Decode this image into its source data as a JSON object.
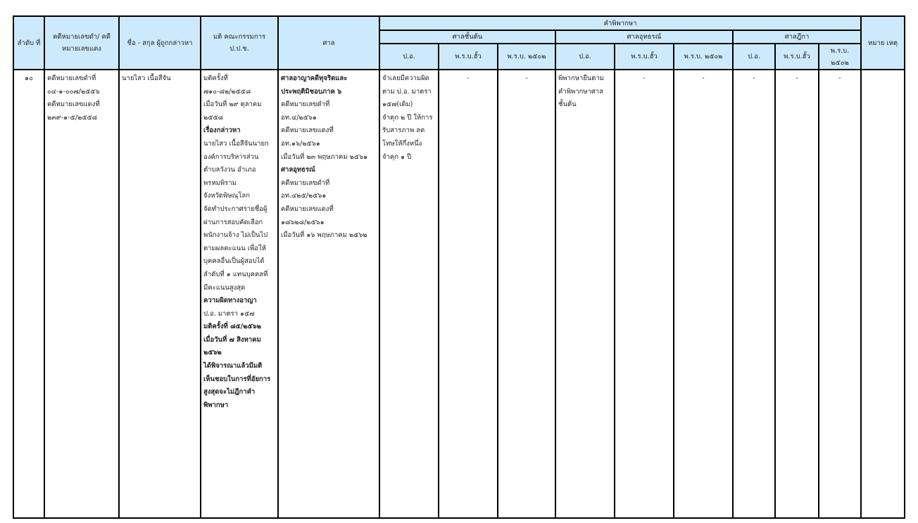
{
  "header": {
    "order": "ลำดับ ที่",
    "case_no": "คดีหมายเลขดำ/ คดีหมายเลขแดง",
    "name": "ชื่อ - สกุล ผู้ถูกกล่าวหา",
    "resolution": "มติ คณะกรรมการ ป.ป.ช.",
    "court": "ศาล",
    "judgment": "คำพิพากษา",
    "first_court": "ศาลชั้นต้น",
    "appeal_court": "ศาลอุทธรณ์",
    "supreme_court": "ศาลฎีกา",
    "remark": "หมาย เหตุ",
    "sub": [
      "ป.อ.",
      "พ.ร.บ.ฮั้ว",
      "พ.ร.บ. ๒๕๐๒"
    ],
    "sub_supreme_last": "พ.ร.บ. ๒๕๐๒"
  },
  "row": {
    "order": "๑๐",
    "case_no": [
      "คดีหมายเลขดำที่",
      "๐๔-๑-๐๐๗/๒๕๕๖",
      "คดีหมายเลขแดงที่",
      "๒๓๙-๑-๕/๒๕๕๘"
    ],
    "name": "นายไสว  เนื้อสีจัน",
    "resolution": [
      {
        "t": "มติครั้งที่",
        "b": false
      },
      {
        "t": "๗๑๐-๘๒/๒๕๕๘",
        "b": false
      },
      {
        "t": "เมื่อวันที่ ๒๙ ตุลาคม",
        "b": false
      },
      {
        "t": "๒๕๕๘",
        "b": false
      },
      {
        "t": " เรื่องกล่าวหา",
        "b": true
      },
      {
        "t": "นายไสว  เนื้อสีจันนายก",
        "b": false
      },
      {
        "t": "องค์การบริหารส่วน",
        "b": false
      },
      {
        "t": "ตำบลวังวน อำเภอ",
        "b": false
      },
      {
        "t": "พรหมพิราม",
        "b": false
      },
      {
        "t": "จังหวัดพิษณุโลก",
        "b": false
      },
      {
        "t": " จัดทำประกาศรายชื่อผู้",
        "b": false
      },
      {
        "t": "ผ่านการสอบคัดเลือก",
        "b": false
      },
      {
        "t": "พนักงานจ้าง ไม่เป็นไป",
        "b": false
      },
      {
        "t": "ตามผลคะแนน เพื่อให้",
        "b": false
      },
      {
        "t": "บุคคลอื่นเป็นผู้สอบได้",
        "b": false
      },
      {
        "t": "ลำดับที่ ๑ แทนบุคคลที่",
        "b": false
      },
      {
        "t": "มีคะแนนสูงสุด",
        "b": false
      },
      {
        "t": "ความผิดทางอาญา",
        "b": true
      },
      {
        "t": "ป.อ. มาตรา ๑๕๗",
        "b": false
      },
      {
        "t": " ",
        "b": false
      },
      {
        "t": " มติครั้งที่ ๘๕/๒๕๖๒",
        "b": true
      },
      {
        "t": "เมื่อวันที่ ๗ สิงหาคม",
        "b": true
      },
      {
        "t": "๒๕๖๒",
        "b": true
      },
      {
        "t": "ได้พิจารณาแล้วมีมติ",
        "b": true
      },
      {
        "t": "เห็นชอบในการที่อัยการ",
        "b": true
      },
      {
        "t": "สูงสุดจะไม่ฎีกาคำ",
        "b": true
      },
      {
        "t": "พิพากษา",
        "b": true
      }
    ],
    "court": [
      {
        "t": "ศาลอาญาคดีทุจริตและ",
        "b": true
      },
      {
        "t": "ประพฤติมิชอบภาค ๖",
        "b": true
      },
      {
        "t": "คดีหมายเลขดำที่",
        "b": false
      },
      {
        "t": "อท.๔/๒๕๖๑",
        "b": false
      },
      {
        "t": "คดีหมายเลขแดงที่",
        "b": false
      },
      {
        "t": "อท.๑๖/๒๕๖๑",
        "b": false
      },
      {
        "t": "เมื่อวันที่ ๒๓ พฤษภาคม ๒๕๖๑",
        "b": false
      },
      {
        "t": " ",
        "b": false
      },
      {
        "t": "ศาลอุทธรณ์",
        "b": true
      },
      {
        "t": "คดีหมายเลขดำที่",
        "b": false
      },
      {
        "t": "อท.๔๒๕/๒๕๖๑",
        "b": false
      },
      {
        "t": "คดีหมายเลขแดงที่",
        "b": false
      },
      {
        "t": "๑๘๖๒๘/๒๕๖๑",
        "b": false
      },
      {
        "t": "เมื่อวันที่ ๑๖ พฤษภาคม ๒๕๖๒",
        "b": false
      }
    ],
    "first_po": [
      "จำเลยมีความผิด",
      "ตาม ป.อ. มาตรา",
      "๑๕๗(เดิม)",
      "จำคุก ๒ ปี ให้การ",
      "รับสารภาพ ลด",
      "โทษให้กึ่งหนึ่ง",
      "จำคุก ๑ ปี"
    ],
    "appeal_po": [
      "พิพากษายืนตาม",
      "คำพิพากษาศาล",
      "ชั้นต้น"
    ],
    "dash": "-"
  }
}
